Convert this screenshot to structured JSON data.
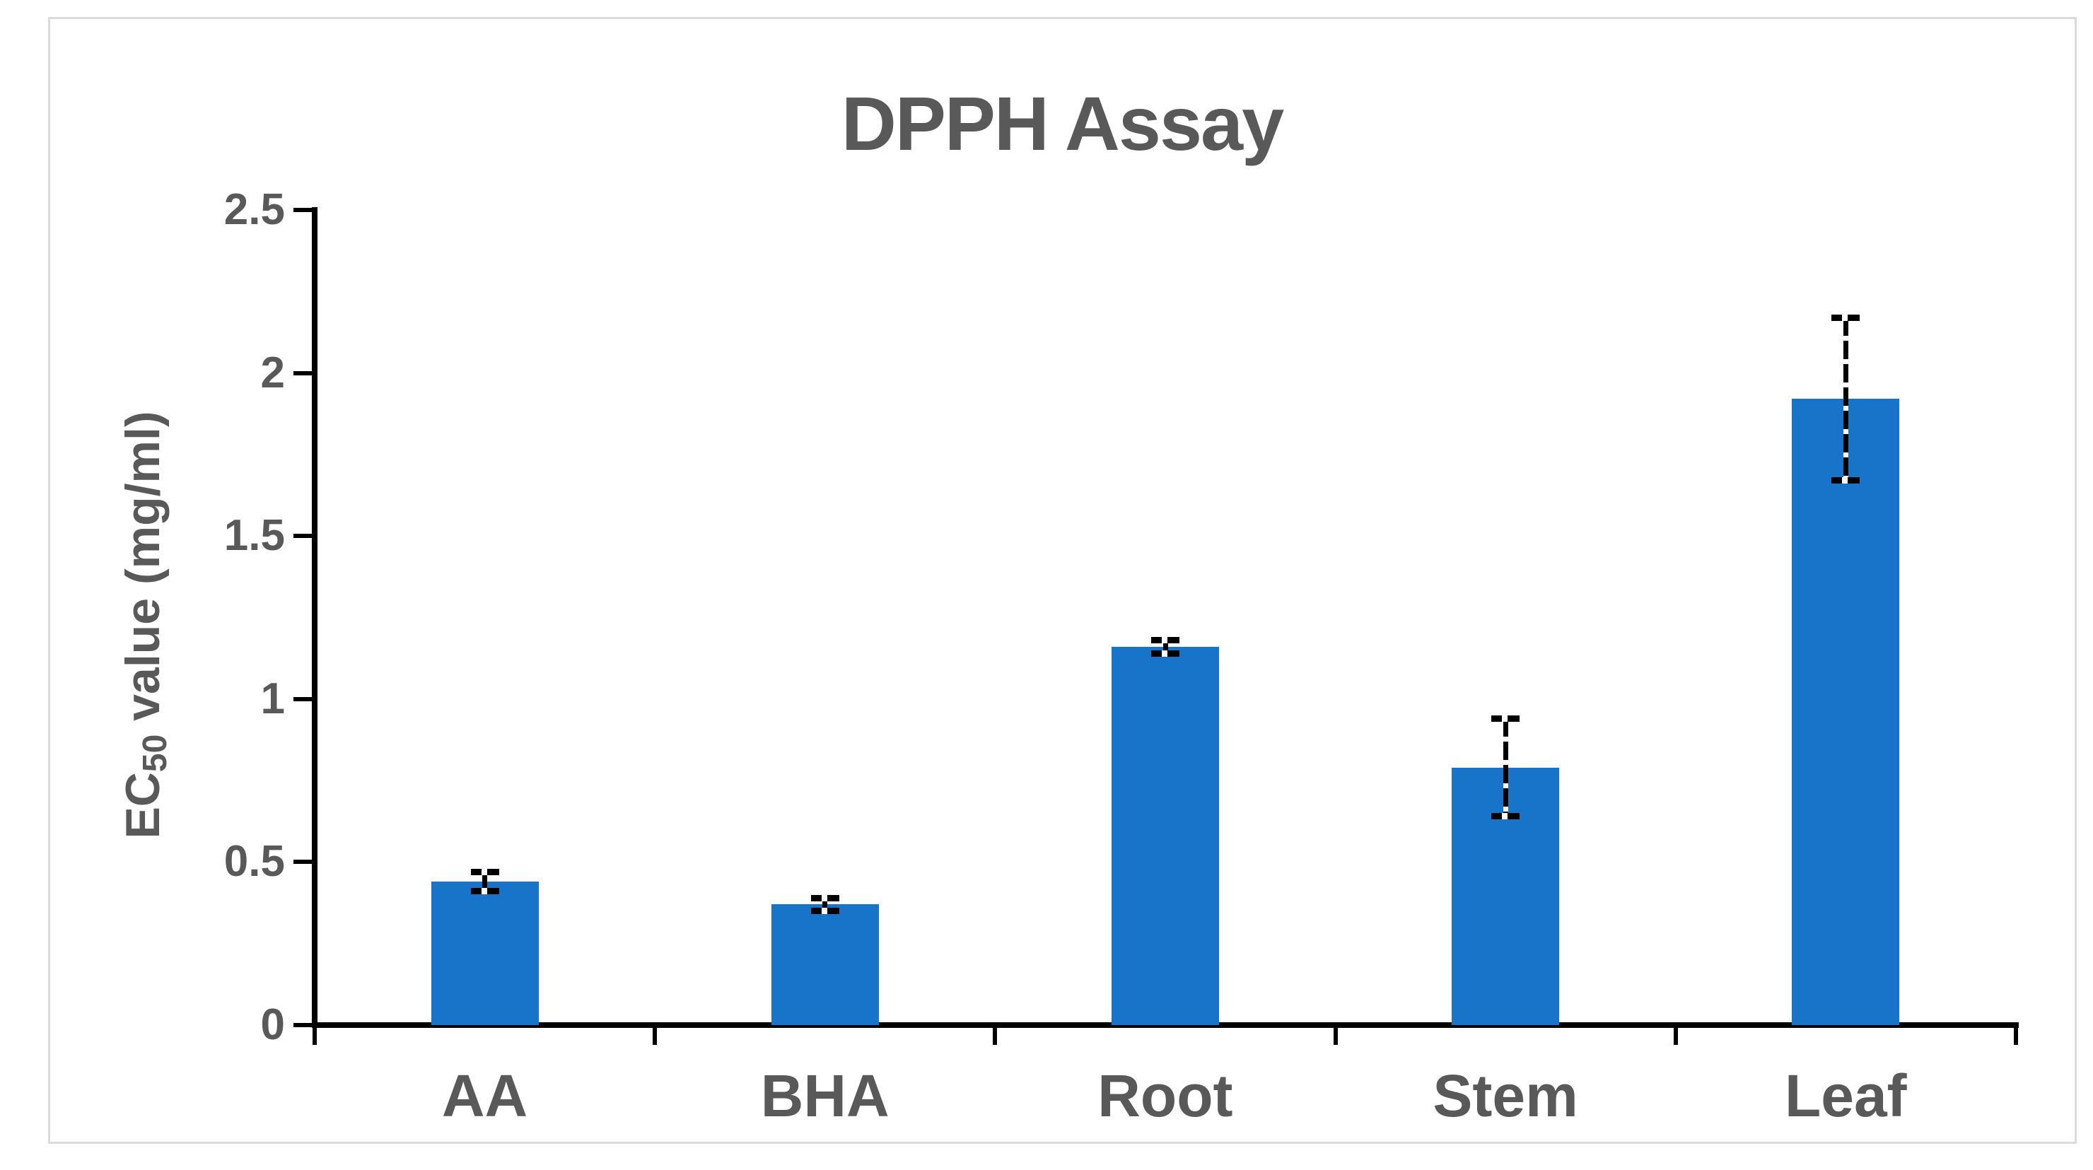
{
  "chart_data": {
    "type": "bar",
    "title": "DPPH Assay",
    "categories": [
      "AA",
      "BHA",
      "Root",
      "Stem",
      "Leaf"
    ],
    "series": [
      {
        "name": "EC50 value (mg/ml)",
        "values": [
          0.44,
          0.37,
          1.16,
          0.79,
          1.92
        ],
        "errors": [
          0.03,
          0.02,
          0.02,
          0.15,
          0.25
        ]
      }
    ],
    "xlabel": "",
    "ylabel_parts": {
      "prefix": "EC",
      "subscript": "50",
      "suffix": " value (mg/ml)"
    },
    "ylabel": "EC50 value (mg/ml)",
    "ylim": [
      0,
      2.5
    ],
    "ytick_step": 0.5,
    "ytick_labels": [
      "0",
      "0.5",
      "1",
      "1.5",
      "2",
      "2.5"
    ],
    "grid": false,
    "legend": false,
    "error_bars": true,
    "colors": {
      "bar": "#1774C9",
      "error_bar": "#000000",
      "axis": "#000000",
      "text": "#595959",
      "frame_border": "#DBDBDB",
      "background": "#FFFFFF"
    }
  }
}
